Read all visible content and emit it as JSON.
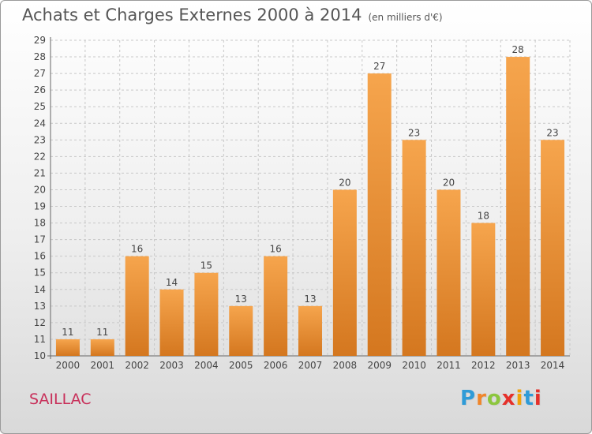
{
  "title": "Achats et Charges Externes 2000 à 2014",
  "unit": "(en milliers d'€)",
  "city": "SAILLAC",
  "brand": {
    "text": "Proxiti",
    "letter_colors": [
      "#2f9bd7",
      "#f0852a",
      "#8cc63e",
      "#e5302a",
      "#f0a30a",
      "#2f9bd7",
      "#e5302a"
    ]
  },
  "colors": {
    "bar_light": "#f6a54d",
    "bar_dark": "#d4771f",
    "grid": "#c8c8c8",
    "axis": "#666666",
    "text": "#444444"
  },
  "chart_data": {
    "type": "bar",
    "categories": [
      "2000",
      "2001",
      "2002",
      "2003",
      "2004",
      "2005",
      "2006",
      "2007",
      "2008",
      "2009",
      "2010",
      "2011",
      "2012",
      "2013",
      "2014"
    ],
    "values": [
      11,
      11,
      16,
      14,
      15,
      13,
      16,
      13,
      20,
      27,
      23,
      20,
      18,
      28,
      23
    ],
    "ylim": [
      10,
      29
    ],
    "yticks": [
      10,
      11,
      12,
      13,
      14,
      15,
      16,
      17,
      18,
      19,
      20,
      21,
      22,
      23,
      24,
      25,
      26,
      27,
      28,
      29
    ],
    "grid": true,
    "data_labels": true
  }
}
